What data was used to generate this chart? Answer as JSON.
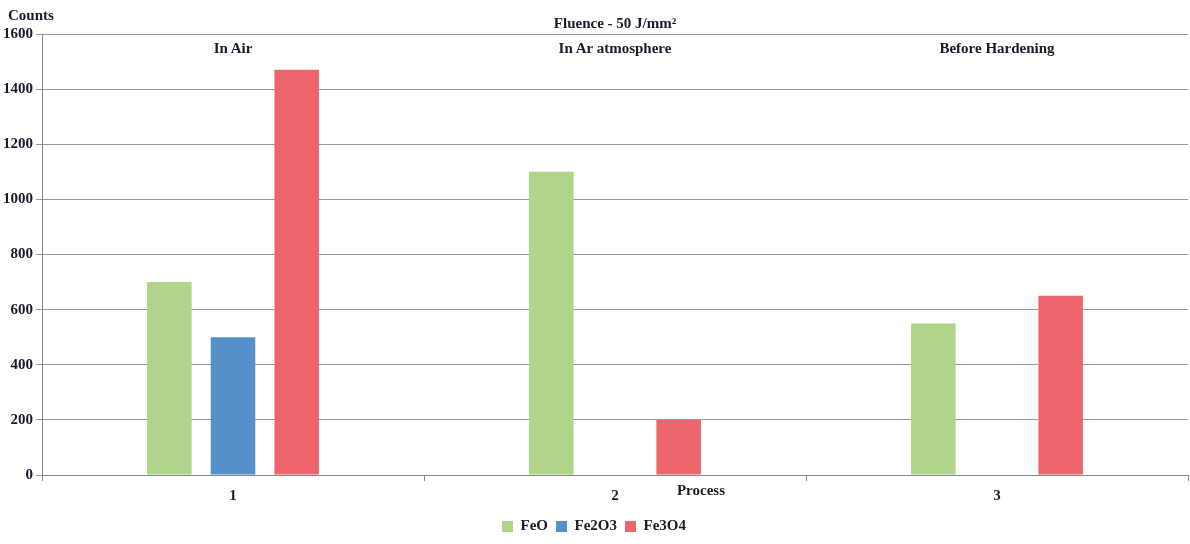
{
  "chart_data": {
    "type": "bar",
    "title": "Fluence - 50 J/mm²",
    "xlabel": "Process",
    "ylabel": "Counts",
    "categories": [
      "1",
      "2",
      "3"
    ],
    "series": [
      {
        "name": "FeO",
        "color": "#b0d48a",
        "values": [
          700,
          1100,
          550
        ]
      },
      {
        "name": "Fe2O3",
        "color": "#5590cb",
        "values": [
          500,
          null,
          null
        ]
      },
      {
        "name": "Fe3O4",
        "color": "#ee666d",
        "values": [
          1470,
          200,
          650
        ]
      }
    ],
    "ylim": [
      0,
      1600
    ],
    "yticks": [
      0,
      200,
      400,
      600,
      800,
      1000,
      1200,
      1400,
      1600
    ],
    "grid": "y",
    "legend": "bottom",
    "annotations": [
      "In Air",
      "In Ar atmosphere",
      "Before Hardening"
    ]
  }
}
